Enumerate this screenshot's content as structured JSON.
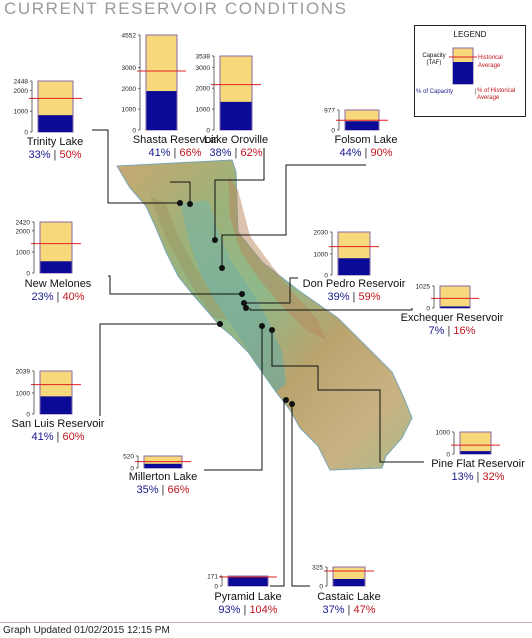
{
  "header": {
    "title": "CURRENT RESERVOIR CONDITIONS"
  },
  "legend": {
    "title": "LEGEND",
    "capacity_label": "Capacity (TAF)",
    "historical_label": "Historical Average",
    "pct_capacity_label": "% of Capacity",
    "separator": "|",
    "pct_historical_label": "% of Historical Average"
  },
  "footer": {
    "updated": "Graph Updated 01/02/2015 12:15 PM"
  },
  "colors": {
    "capacity_fill": "#f7d87a",
    "storage_fill": "#0a0a96",
    "historical_line": "#e02020",
    "frame": "#8a6aa8"
  },
  "chart_data": {
    "type": "bar",
    "units": "TAF",
    "reservoirs": [
      {
        "name": "Trinity Lake",
        "capacity": 2448,
        "ticks": [
          "2448",
          "2000",
          "1000",
          "0"
        ],
        "tick_values": [
          2448,
          2000,
          1000,
          0
        ],
        "pct_capacity": 33,
        "pct_historical": 50,
        "pct_capacity_label": "33%",
        "pct_historical_label": "50%"
      },
      {
        "name": "Shasta Reservoir",
        "capacity": 4552,
        "ticks": [
          "4552",
          "3000",
          "2000",
          "1000",
          "0"
        ],
        "tick_values": [
          4552,
          3000,
          2000,
          1000,
          0
        ],
        "pct_capacity": 41,
        "pct_historical": 66,
        "pct_capacity_label": "41%",
        "pct_historical_label": "66%"
      },
      {
        "name": "Lake Oroville",
        "capacity": 3538,
        "ticks": [
          "3538",
          "3000",
          "2000",
          "1000",
          "0"
        ],
        "tick_values": [
          3538,
          3000,
          2000,
          1000,
          0
        ],
        "pct_capacity": 38,
        "pct_historical": 62,
        "pct_capacity_label": "38%",
        "pct_historical_label": "62%"
      },
      {
        "name": "Folsom Lake",
        "capacity": 977,
        "ticks": [
          "977",
          "0"
        ],
        "tick_values": [
          977,
          0
        ],
        "pct_capacity": 44,
        "pct_historical": 90,
        "pct_capacity_label": "44%",
        "pct_historical_label": "90%"
      },
      {
        "name": "New Melones",
        "capacity": 2420,
        "ticks": [
          "2420",
          "2000",
          "1000",
          "0"
        ],
        "tick_values": [
          2420,
          2000,
          1000,
          0
        ],
        "pct_capacity": 23,
        "pct_historical": 40,
        "pct_capacity_label": "23%",
        "pct_historical_label": "40%"
      },
      {
        "name": "Don Pedro Reservoir",
        "capacity": 2030,
        "ticks": [
          "2030",
          "1000",
          "0"
        ],
        "tick_values": [
          2030,
          1000,
          0
        ],
        "pct_capacity": 39,
        "pct_historical": 59,
        "pct_capacity_label": "39%",
        "pct_historical_label": "59%"
      },
      {
        "name": "Exchequer Reservoir",
        "capacity": 1025,
        "ticks": [
          "1025",
          "0"
        ],
        "tick_values": [
          1025,
          0
        ],
        "pct_capacity": 7,
        "pct_historical": 16,
        "pct_capacity_label": "7%",
        "pct_historical_label": "16%"
      },
      {
        "name": "San Luis Reservoir",
        "capacity": 2039,
        "ticks": [
          "2039",
          "1000",
          "0"
        ],
        "tick_values": [
          2039,
          1000,
          0
        ],
        "pct_capacity": 41,
        "pct_historical": 60,
        "pct_capacity_label": "41%",
        "pct_historical_label": "60%"
      },
      {
        "name": "Millerton Lake",
        "capacity": 520,
        "ticks": [
          "520",
          "0"
        ],
        "tick_values": [
          520,
          0
        ],
        "pct_capacity": 35,
        "pct_historical": 66,
        "pct_capacity_label": "35%",
        "pct_historical_label": "66%"
      },
      {
        "name": "Pine Flat Reservoir",
        "capacity": 1000,
        "ticks": [
          "1000",
          "0"
        ],
        "tick_values": [
          1000,
          0
        ],
        "pct_capacity": 13,
        "pct_historical": 32,
        "pct_capacity_label": "13%",
        "pct_historical_label": "32%"
      },
      {
        "name": "Pyramid Lake",
        "capacity": 171,
        "ticks": [
          "171",
          "0"
        ],
        "tick_values": [
          171,
          0
        ],
        "pct_capacity": 93,
        "pct_historical": 104,
        "pct_capacity_label": "93%",
        "pct_historical_label": "104%"
      },
      {
        "name": "Castaic Lake",
        "capacity": 325,
        "ticks": [
          "325",
          "0"
        ],
        "tick_values": [
          325,
          0
        ],
        "pct_capacity": 37,
        "pct_historical": 47,
        "pct_capacity_label": "37%",
        "pct_historical_label": "47%"
      }
    ]
  }
}
